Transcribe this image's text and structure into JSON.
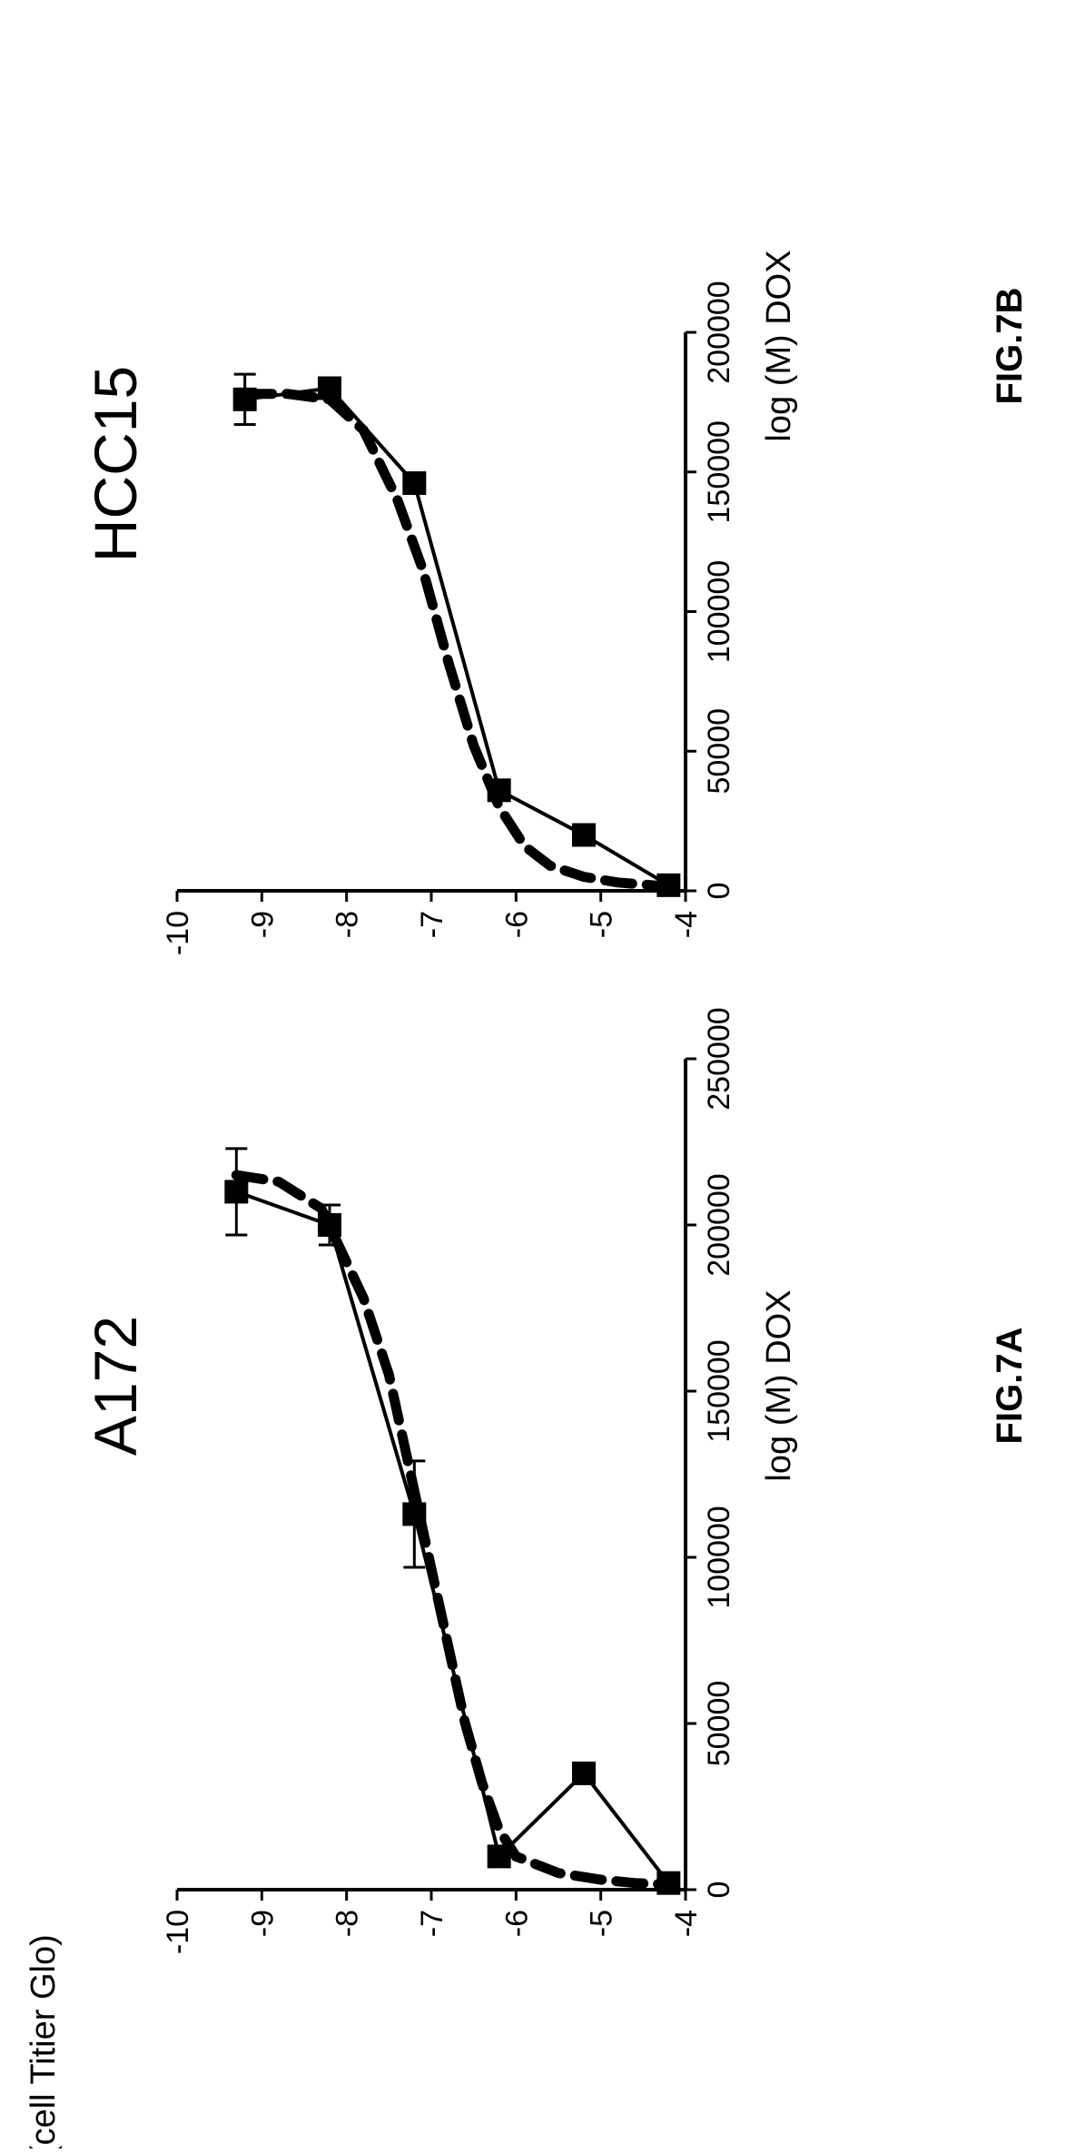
{
  "chart_data": [
    {
      "type": "line",
      "title": "A172",
      "figure_label": "FIG.7A",
      "xlabel": "log (M) DOX",
      "ylabel": "RLU (cell Titier Glo)",
      "xlim": [
        -10,
        -4
      ],
      "ylim": [
        0,
        250000
      ],
      "x_ticks": [
        "-10",
        "-9",
        "-8",
        "-7",
        "-6",
        "-5",
        "-4"
      ],
      "y_ticks": [
        "0",
        "50000",
        "100000",
        "150000",
        "200000",
        "250000"
      ],
      "series": [
        {
          "style": "solid-with-square-markers",
          "x": [
            -9.3,
            -8.2,
            -7.2,
            -6.2,
            -5.2,
            -4.2
          ],
          "y": [
            210000,
            200000,
            113000,
            10000,
            35000,
            2000
          ],
          "error": [
            13000,
            6000,
            16000,
            0,
            0,
            0
          ]
        },
        {
          "style": "dashed-fit",
          "x": [
            -9.3,
            -8.8,
            -8.3,
            -7.8,
            -7.5,
            -7.2,
            -6.9,
            -6.6,
            -6.4,
            -6.2,
            -6.0,
            -5.5,
            -5.0,
            -4.6,
            -4.2
          ],
          "y": [
            215000,
            213000,
            205000,
            178000,
            155000,
            120000,
            85000,
            50000,
            32000,
            18000,
            10000,
            5000,
            3000,
            2000,
            1500
          ]
        }
      ]
    },
    {
      "type": "line",
      "title": "HCC15",
      "figure_label": "FIG.7B",
      "xlabel": "log (M) DOX",
      "ylabel": "",
      "xlim": [
        -10,
        -4
      ],
      "ylim": [
        0,
        200000
      ],
      "x_ticks": [
        "-10",
        "-9",
        "-8",
        "-7",
        "-6",
        "-5",
        "-4"
      ],
      "y_ticks": [
        "0",
        "50000",
        "100000",
        "150000",
        "200000"
      ],
      "series": [
        {
          "style": "solid-with-square-markers",
          "x": [
            -9.2,
            -8.2,
            -7.2,
            -6.2,
            -5.2,
            -4.2
          ],
          "y": [
            176000,
            180000,
            146000,
            36000,
            20000,
            2000
          ],
          "error": [
            9000,
            0,
            0,
            0,
            0,
            0
          ]
        },
        {
          "style": "dashed-fit",
          "x": [
            -9.2,
            -8.7,
            -8.2,
            -7.8,
            -7.4,
            -7.1,
            -6.8,
            -6.5,
            -6.2,
            -5.9,
            -5.6,
            -5.2,
            -4.8,
            -4.4,
            -4.2
          ],
          "y": [
            178000,
            178000,
            176000,
            165000,
            140000,
            115000,
            82000,
            52000,
            30000,
            16000,
            9000,
            5000,
            3000,
            2000,
            1500
          ]
        }
      ]
    }
  ]
}
